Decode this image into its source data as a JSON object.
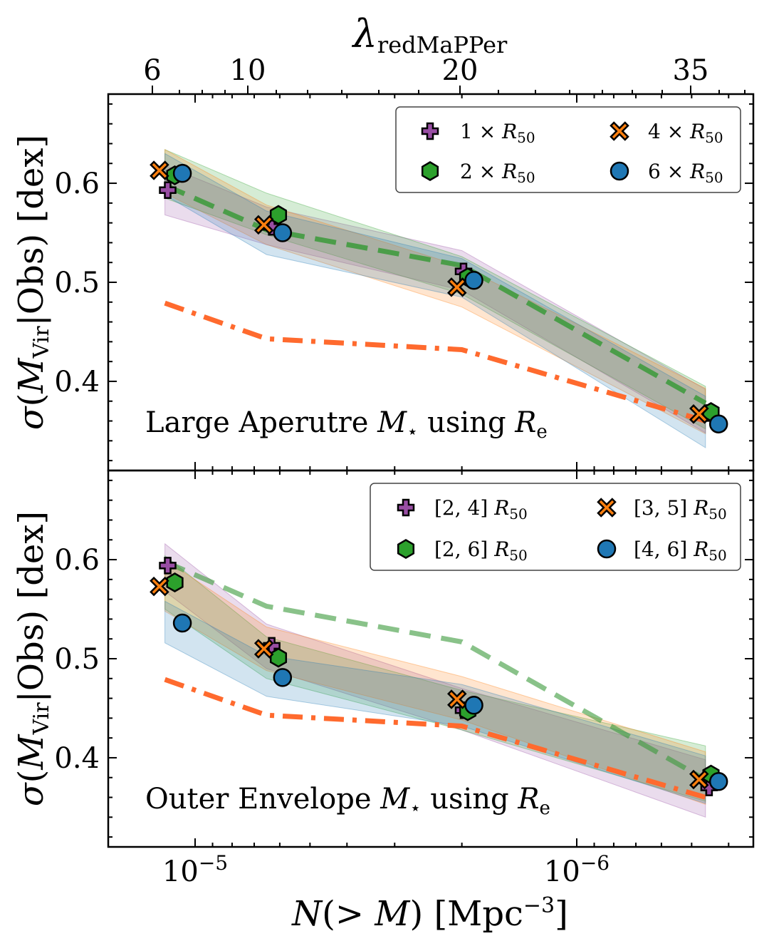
{
  "chart_data": {
    "type": "line",
    "top_axis": {
      "label": "λredMaPPer",
      "tick_labels": [
        "6",
        "10",
        "20",
        "35"
      ]
    },
    "x_axis": {
      "label": "N(> M) [Mpc−3]",
      "scale": "log",
      "reversed": true,
      "tick_labels": [
        "10−5",
        "10−6"
      ],
      "range": [
        2.3e-05,
        3.1e-07
      ]
    },
    "x_values": [
      1.2e-05,
      6.5e-06,
      2e-06,
      4.6e-07
    ],
    "reference_lines": {
      "dashed_green": [
        0.598,
        0.553,
        0.517,
        0.378
      ],
      "dashdot_orange": [
        0.479,
        0.443,
        0.432,
        0.36
      ]
    },
    "panels": [
      {
        "annotation": "Large Aperutre M⋆ using Re",
        "y_label": "σ(MVir|Obs) [dex]",
        "y_tick_labels": [
          "0.4",
          "0.5",
          "0.6"
        ],
        "ylim": [
          0.31,
          0.69
        ],
        "legend": {
          "placement": "top-right",
          "columns": 2
        },
        "series": [
          {
            "name": "1 × R50",
            "marker": "plus",
            "color": "#984ea3",
            "x": [
              1.18e-05,
              6.3e-06,
              1.98e-06,
              4.5e-07
            ],
            "y": [
              0.593,
              0.556,
              0.511,
              0.368
            ],
            "band_lo": [
              0.568,
              0.538,
              0.492,
              0.348
            ],
            "band_hi": [
              0.618,
              0.576,
              0.532,
              0.392
            ]
          },
          {
            "name": "2 × R50",
            "marker": "hexagon",
            "color": "#2ca02c",
            "x": [
              1.13e-05,
              6.05e-06,
              1.93e-06,
              4.45e-07
            ],
            "y": [
              0.608,
              0.568,
              0.505,
              0.369
            ],
            "band_lo": [
              0.585,
              0.548,
              0.488,
              0.352
            ],
            "band_hi": [
              0.634,
              0.59,
              0.526,
              0.395
            ]
          },
          {
            "name": "4 × R50",
            "marker": "x",
            "color": "#ff7f0e",
            "x": [
              1.24e-05,
              6.6e-06,
              2.06e-06,
              4.78e-07
            ],
            "y": [
              0.613,
              0.558,
              0.495,
              0.367
            ],
            "band_lo": [
              0.59,
              0.538,
              0.475,
              0.347
            ],
            "band_hi": [
              0.634,
              0.578,
              0.516,
              0.393
            ]
          },
          {
            "name": "6 × R50",
            "marker": "circle",
            "color": "#1f77b4",
            "x": [
              1.08e-05,
              5.9e-06,
              1.86e-06,
              4.25e-07
            ],
            "y": [
              0.61,
              0.55,
              0.502,
              0.357
            ],
            "band_lo": [
              0.588,
              0.528,
              0.485,
              0.333
            ],
            "band_hi": [
              0.63,
              0.572,
              0.524,
              0.385
            ]
          }
        ]
      },
      {
        "annotation": "Outer Envelope M⋆ using Re",
        "y_label": "σ(MVir|Obs) [dex]",
        "y_tick_labels": [
          "0.4",
          "0.5",
          "0.6"
        ],
        "ylim": [
          0.31,
          0.69
        ],
        "legend": {
          "placement": "top-right",
          "columns": 2
        },
        "series": [
          {
            "name": "[2, 4] R50",
            "marker": "plus",
            "color": "#984ea3",
            "x": [
              1.18e-05,
              6.3e-06,
              1.98e-06,
              4.5e-07
            ],
            "y": [
              0.594,
              0.513,
              0.448,
              0.37
            ],
            "band_lo": [
              0.568,
              0.49,
              0.428,
              0.34
            ],
            "band_hi": [
              0.616,
              0.535,
              0.47,
              0.398
            ]
          },
          {
            "name": "[2, 6] R50",
            "marker": "hexagon",
            "color": "#2ca02c",
            "x": [
              1.13e-05,
              6.05e-06,
              1.93e-06,
              4.45e-07
            ],
            "y": [
              0.577,
              0.501,
              0.447,
              0.383
            ],
            "band_lo": [
              0.55,
              0.48,
              0.428,
              0.356
            ],
            "band_hi": [
              0.604,
              0.522,
              0.468,
              0.412
            ]
          },
          {
            "name": "[3, 5] R50",
            "marker": "x",
            "color": "#ff7f0e",
            "x": [
              1.24e-05,
              6.6e-06,
              2.06e-06,
              4.78e-07
            ],
            "y": [
              0.573,
              0.51,
              0.459,
              0.378
            ],
            "band_lo": [
              0.548,
              0.488,
              0.438,
              0.353
            ],
            "band_hi": [
              0.6,
              0.532,
              0.482,
              0.406
            ]
          },
          {
            "name": "[4, 6] R50",
            "marker": "circle",
            "color": "#1f77b4",
            "x": [
              1.08e-05,
              5.9e-06,
              1.86e-06,
              4.25e-07
            ],
            "y": [
              0.536,
              0.481,
              0.453,
              0.376
            ],
            "band_lo": [
              0.516,
              0.462,
              0.432,
              0.354
            ],
            "band_hi": [
              0.558,
              0.503,
              0.474,
              0.402
            ]
          }
        ]
      }
    ]
  }
}
